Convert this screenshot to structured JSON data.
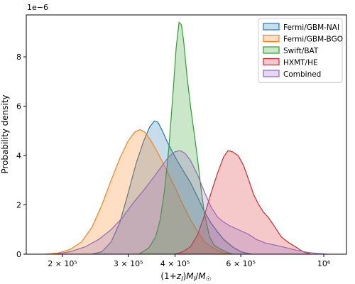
{
  "chart_data": {
    "type": "area",
    "title": "",
    "xlabel": "(1+z_l)M_l/M_☉",
    "ylabel": "Probability density",
    "y_scale_label": "1e−6",
    "x_scale": "log",
    "xlim": [
      160000,
      1150000
    ],
    "ylim": [
      0,
      9.7e-06
    ],
    "x_ticks": [
      {
        "value": 200000,
        "label": "2 × 10⁵"
      },
      {
        "value": 300000,
        "label": "3 × 10⁵"
      },
      {
        "value": 400000,
        "label": "4 × 10⁵"
      },
      {
        "value": 600000,
        "label": "6 × 10⁵"
      },
      {
        "value": 1000000,
        "label": "10⁶"
      }
    ],
    "y_ticks": [
      {
        "value": 0,
        "label": "0"
      },
      {
        "value": 2e-06,
        "label": "2"
      },
      {
        "value": 4e-06,
        "label": "4"
      },
      {
        "value": 6e-06,
        "label": "6"
      },
      {
        "value": 8e-06,
        "label": "8"
      }
    ],
    "legend_position": "top-right",
    "grid": false,
    "series": [
      {
        "name": "Fermi/GBM-NAI",
        "color": "#1f77b4",
        "x": [
          240000,
          255000,
          270000,
          285000,
          300000,
          315000,
          330000,
          342000,
          352000,
          360000,
          370000,
          380000,
          392000,
          405000,
          420000,
          440000,
          460000,
          480000,
          500000,
          520000,
          540000,
          570000,
          600000,
          640000
        ],
        "y": [
          0,
          1e-07,
          5e-07,
          1.3e-06,
          2.5e-06,
          3.7e-06,
          4.6e-06,
          5.15e-06,
          5.4e-06,
          5.35e-06,
          5e-06,
          4.6e-06,
          4.2e-06,
          3.8e-06,
          3.4e-06,
          2.9e-06,
          2.3e-06,
          1.7e-06,
          1.25e-06,
          9e-07,
          6e-07,
          3e-07,
          1e-07,
          0
        ]
      },
      {
        "name": "Fermi/GBM-BGO",
        "color": "#ff7f0e",
        "x": [
          180000,
          195000,
          210000,
          225000,
          240000,
          255000,
          270000,
          285000,
          300000,
          312000,
          322000,
          332000,
          345000,
          360000,
          380000,
          400000,
          420000,
          440000,
          460000,
          480000,
          500000,
          520000,
          540000,
          560000
        ],
        "y": [
          0,
          5e-08,
          2e-07,
          5e-07,
          1.1e-06,
          2e-06,
          3e-06,
          3.9e-06,
          4.6e-06,
          4.95e-06,
          5.05e-06,
          4.95e-06,
          4.6e-06,
          4.1e-06,
          3.4e-06,
          2.7e-06,
          2e-06,
          1.4e-06,
          9e-07,
          5e-07,
          3e-07,
          1.5e-07,
          5e-08,
          0
        ]
      },
      {
        "name": "Swift/BAT",
        "color": "#2ca02c",
        "x": [
          320000,
          340000,
          355000,
          365000,
          375000,
          385000,
          395000,
          403000,
          410000,
          416000,
          422000,
          430000,
          440000,
          450000,
          460000,
          470000,
          480000,
          495000,
          510000,
          530000,
          550000,
          570000
        ],
        "y": [
          0,
          2.5e-07,
          7e-07,
          1.4e-06,
          2.6e-06,
          4.3e-06,
          6.5e-06,
          8.4e-06,
          9.4e-06,
          9.3e-06,
          8.6e-06,
          7.3e-06,
          6e-06,
          4.9e-06,
          3.8e-06,
          2.6e-06,
          1.6e-06,
          7e-07,
          3.5e-07,
          2e-07,
          8e-08,
          0
        ]
      },
      {
        "name": "HXMT/HE",
        "color": "#d62728",
        "x": [
          400000,
          420000,
          440000,
          460000,
          480000,
          500000,
          520000,
          540000,
          555000,
          570000,
          590000,
          610000,
          630000,
          650000,
          670000,
          690000,
          710000,
          740000,
          770000,
          800000,
          840000,
          880000,
          920000
        ],
        "y": [
          0,
          1e-07,
          3e-07,
          8e-07,
          1.6e-06,
          2.5e-06,
          3.3e-06,
          3.95e-06,
          4.2e-06,
          4.15e-06,
          4e-06,
          3.6e-06,
          3e-06,
          2.4e-06,
          2e-06,
          1.7e-06,
          1.5e-06,
          1.1e-06,
          7e-07,
          5e-07,
          3e-07,
          1e-07,
          0
        ]
      },
      {
        "name": "Combined",
        "color": "#9467bd",
        "x": [
          190000,
          210000,
          230000,
          250000,
          270000,
          290000,
          310000,
          330000,
          350000,
          370000,
          385000,
          400000,
          412000,
          425000,
          440000,
          460000,
          480000,
          500000,
          520000,
          540000,
          560000,
          580000,
          600000,
          630000,
          660000,
          700000,
          750000,
          800000,
          850000,
          900000,
          960000,
          1020000
        ],
        "y": [
          0,
          1e-07,
          3e-07,
          6e-07,
          1e-06,
          1.5e-06,
          2.1e-06,
          2.6e-06,
          3.1e-06,
          3.6e-06,
          3.95e-06,
          4.15e-06,
          4.2e-06,
          4.1e-06,
          3.8e-06,
          3.2e-06,
          2.5e-06,
          1.9e-06,
          1.5e-06,
          1.3e-06,
          1.15e-06,
          1.05e-06,
          9.5e-07,
          8e-07,
          6e-07,
          4.5e-07,
          3.5e-07,
          2.5e-07,
          1.5e-07,
          8e-08,
          3e-08,
          0
        ]
      }
    ]
  }
}
